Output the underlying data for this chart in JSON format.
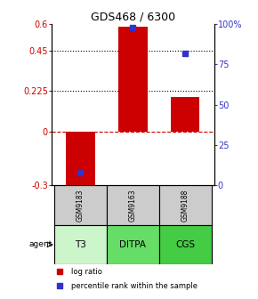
{
  "title": "GDS468 / 6300",
  "samples": [
    "GSM9183",
    "GSM9163",
    "GSM9188"
  ],
  "agents": [
    "T3",
    "DITPA",
    "CGS"
  ],
  "log_ratios": [
    -0.32,
    0.585,
    0.195
  ],
  "percentile_ranks": [
    8,
    98,
    82
  ],
  "ylim_left": [
    -0.3,
    0.6
  ],
  "ylim_right": [
    0,
    100
  ],
  "left_ticks": [
    -0.3,
    0,
    0.225,
    0.45,
    0.6
  ],
  "left_tick_labels": [
    "-0.3",
    "0",
    "0.225",
    "0.45",
    "0.6"
  ],
  "right_ticks": [
    0,
    25,
    50,
    75,
    100
  ],
  "right_tick_labels": [
    "0",
    "25",
    "50",
    "75",
    "100%"
  ],
  "dotted_lines": [
    0.225,
    0.45
  ],
  "bar_color": "#cc0000",
  "dot_color": "#3333cc",
  "agent_bg_t3": "#ccf5cc",
  "agent_bg_ditpa": "#66dd66",
  "agent_bg_cgs": "#44cc44",
  "sample_bg": "#cccccc",
  "bar_width": 0.55,
  "x_positions": [
    0,
    1,
    2
  ]
}
